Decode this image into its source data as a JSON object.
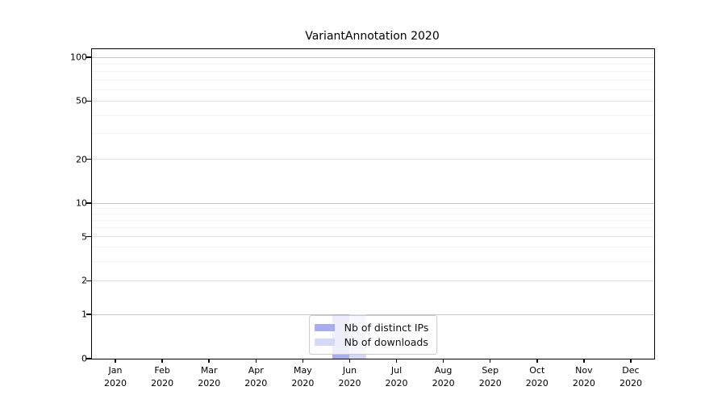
{
  "title": "VariantAnnotation 2020",
  "chart_data": {
    "type": "bar",
    "title": "VariantAnnotation 2020",
    "categories": [
      "Jan",
      "Feb",
      "Mar",
      "Apr",
      "May",
      "Jun",
      "Jul",
      "Aug",
      "Sep",
      "Oct",
      "Nov",
      "Dec"
    ],
    "year": "2020",
    "series": [
      {
        "name": "Nb of distinct IPs",
        "color": "#a8aeeb",
        "values": [
          0,
          0,
          0,
          0,
          0,
          1,
          0,
          0,
          0,
          0,
          0,
          0
        ]
      },
      {
        "name": "Nb of downloads",
        "color": "#d6d9f6",
        "values": [
          0,
          0,
          0,
          0,
          0,
          1,
          0,
          0,
          0,
          0,
          0,
          0
        ]
      }
    ],
    "yticks": [
      100,
      50,
      20,
      10,
      5,
      2,
      1,
      0
    ],
    "minor_gridlines": [
      3,
      4,
      6,
      7,
      8,
      9,
      30,
      40,
      60,
      70,
      80,
      90
    ],
    "scale": "symlog",
    "ylim": [
      0,
      100
    ],
    "grid": true,
    "legend_position": "lower center",
    "axis_color": "#000000"
  }
}
